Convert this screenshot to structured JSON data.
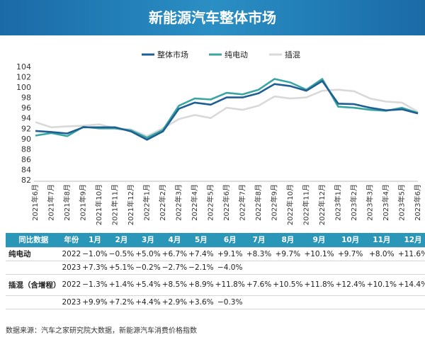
{
  "header": {
    "title": "新能源汽车整体市场"
  },
  "chart_data": {
    "type": "line",
    "title": "新能源汽车整体市场",
    "categories": [
      "2021年6月",
      "2021年7月",
      "2021年8月",
      "2021年9月",
      "2021年10月",
      "2021年11月",
      "2021年12月",
      "2022年1月",
      "2022年2月",
      "2022年3月",
      "2022年4月",
      "2022年5月",
      "2022年6月",
      "2022年7月",
      "2022年8月",
      "2022年9月",
      "2022年10月",
      "2022年11月",
      "2022年12月",
      "2023年1月",
      "2023年2月",
      "2023年3月",
      "2023年4月",
      "2023年5月",
      "2023年6月"
    ],
    "ylim": [
      82,
      104
    ],
    "yticks": [
      "82",
      "84",
      "86",
      "88",
      "90",
      "92",
      "94",
      "96",
      "98",
      "100",
      "102",
      "104"
    ],
    "legend_position": "top",
    "series": [
      {
        "name": "整体市场",
        "color": "#1f5f94",
        "values": [
          91.5,
          91.3,
          91.0,
          92.2,
          92.2,
          92.2,
          91.4,
          89.8,
          91.4,
          95.8,
          97.0,
          96.6,
          98.0,
          98.0,
          98.8,
          100.6,
          100.2,
          99.3,
          101.2,
          96.8,
          96.7,
          96.0,
          95.5,
          95.7,
          94.9
        ]
      },
      {
        "name": "纯电动",
        "color": "#3aa6a3",
        "values": [
          90.6,
          91.1,
          90.5,
          92.3,
          92.0,
          92.0,
          91.6,
          90.2,
          91.7,
          96.4,
          97.8,
          97.6,
          98.9,
          98.6,
          99.5,
          101.6,
          100.9,
          99.5,
          101.6,
          96.2,
          96.0,
          95.6,
          95.4,
          96.0,
          95.0
        ]
      },
      {
        "name": "插混",
        "color": "#d9d9d9",
        "values": [
          93.2,
          92.2,
          92.4,
          92.5,
          92.8,
          92.0,
          91.8,
          90.5,
          92.0,
          93.8,
          94.6,
          94.0,
          96.0,
          95.6,
          96.4,
          98.2,
          97.8,
          98.0,
          99.3,
          99.5,
          99.2,
          97.8,
          97.2,
          97.0,
          95.2
        ]
      }
    ]
  },
  "table": {
    "headers": [
      "同比数据",
      "年份",
      "1月",
      "2月",
      "3月",
      "4月",
      "5月",
      "6月",
      "7月",
      "8月",
      "9月",
      "10月",
      "11月",
      "12月"
    ],
    "rows": [
      {
        "category": "纯电动",
        "year": "2022",
        "values": [
          "−1.0%",
          "−0.5%",
          "+5.0%",
          "+6.7%",
          "+7.4%",
          "+9.1%",
          "+8.3%",
          "+9.7%",
          "+10.1%",
          "+9.7%",
          "+8.0%",
          "+11.6%"
        ]
      },
      {
        "category": "",
        "year": "2023",
        "values": [
          "+7.3%",
          "+5.1%",
          "−0.2%",
          "−2.7%",
          "−2.1%",
          "−4.0%",
          "",
          "",
          "",
          "",
          "",
          ""
        ]
      },
      {
        "category": "插混（含增程）",
        "year": "2022",
        "values": [
          "−1.3%",
          "+1.4%",
          "+5.4%",
          "+8.5%",
          "+8.9%",
          "+11.8%",
          "+7.6%",
          "+10.5%",
          "+11.8%",
          "+12.4%",
          "+10.1%",
          "+14.4%"
        ]
      },
      {
        "category": "",
        "year": "2023",
        "values": [
          "+9.9%",
          "+7.2%",
          "+4.4%",
          "+2.9%",
          "+3.6%",
          "−0.3%",
          "",
          "",
          "",
          "",
          "",
          ""
        ]
      }
    ]
  },
  "footer": {
    "source": "数据来源：汽车之家研究院大数据，新能源汽车消费价格指数"
  }
}
